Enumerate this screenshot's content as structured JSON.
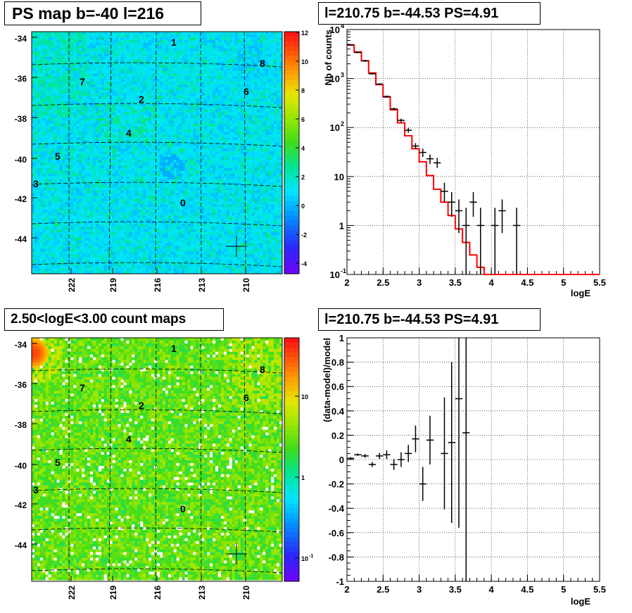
{
  "panels": {
    "map1_title": "PS map b=-40 l=216",
    "map2_title": "2.50<logE<3.00 count maps",
    "spec_title": "l=210.75 b=-44.53 PS=4.91",
    "resid_title": "l=210.75 b=-44.53 PS=4.91"
  },
  "maps": {
    "y_ticks": [
      "-34",
      "-36",
      "-38",
      "-40",
      "-42",
      "-44"
    ],
    "x_ticks": [
      "222",
      "219",
      "216",
      "213",
      "210"
    ],
    "sources": [
      "0",
      "1",
      "2",
      "3",
      "4",
      "5",
      "6",
      "7",
      "8"
    ],
    "map1_scale": [
      "12",
      "10",
      "8",
      "6",
      "4",
      "2",
      "0",
      "-2",
      "-4"
    ],
    "map2_scale": [
      "10",
      "1",
      "10^-1"
    ]
  },
  "chart_data": [
    {
      "type": "line",
      "name_ref": "spectrum",
      "xlabel": "logE",
      "ylabel": "Nb of counts",
      "xlim": [
        2,
        5.5
      ],
      "ylim": [
        0.1,
        10000
      ],
      "yscale": "log",
      "grid": true,
      "x_ticks": [
        "2",
        "2.5",
        "3",
        "3.5",
        "4",
        "4.5",
        "5",
        "5.5"
      ],
      "y_ticks": [
        "10^-1",
        "1",
        "10",
        "10^2",
        "10^3",
        "10^4"
      ],
      "model_color": "#ff0000",
      "model_edges": [
        2.0,
        2.1,
        2.2,
        2.3,
        2.4,
        2.5,
        2.6,
        2.7,
        2.8,
        2.9,
        3.0,
        3.1,
        3.2,
        3.3,
        3.4,
        3.5,
        3.6,
        3.7,
        3.8,
        3.9,
        4.0,
        4.1,
        5.5
      ],
      "model_values": [
        4800,
        3500,
        2300,
        1300,
        750,
        420,
        230,
        125,
        68,
        37,
        20,
        10.5,
        5.5,
        3.0,
        1.6,
        0.85,
        0.45,
        0.25,
        0.14,
        0.1,
        0.1,
        0.1
      ],
      "data_points": [
        {
          "x": 2.05,
          "y": 4900,
          "lo": 4800,
          "hi": 5000
        },
        {
          "x": 2.15,
          "y": 3400,
          "lo": 3300,
          "hi": 3500
        },
        {
          "x": 2.25,
          "y": 2300,
          "lo": 2200,
          "hi": 2400
        },
        {
          "x": 2.35,
          "y": 1250,
          "lo": 1200,
          "hi": 1300
        },
        {
          "x": 2.45,
          "y": 770,
          "lo": 740,
          "hi": 800
        },
        {
          "x": 2.55,
          "y": 430,
          "lo": 410,
          "hi": 450
        },
        {
          "x": 2.65,
          "y": 240,
          "lo": 225,
          "hi": 255
        },
        {
          "x": 2.75,
          "y": 140,
          "lo": 128,
          "hi": 152
        },
        {
          "x": 2.85,
          "y": 88,
          "lo": 78,
          "hi": 98
        },
        {
          "x": 2.95,
          "y": 42,
          "lo": 36,
          "hi": 48
        },
        {
          "x": 3.05,
          "y": 31,
          "lo": 25,
          "hi": 37
        },
        {
          "x": 3.15,
          "y": 23,
          "lo": 18,
          "hi": 28
        },
        {
          "x": 3.25,
          "y": 19,
          "lo": 15,
          "hi": 24
        },
        {
          "x": 3.35,
          "y": 5,
          "lo": 3,
          "hi": 7.5
        },
        {
          "x": 3.45,
          "y": 3,
          "lo": 1.5,
          "hi": 4.8
        },
        {
          "x": 3.55,
          "y": 2,
          "lo": 0.7,
          "hi": 3.4
        },
        {
          "x": 3.65,
          "y": 1,
          "lo": 0.1,
          "hi": 2.3
        },
        {
          "x": 3.75,
          "y": 3,
          "lo": 1.5,
          "hi": 4.8
        },
        {
          "x": 3.85,
          "y": 1,
          "lo": 0.1,
          "hi": 2.3
        },
        {
          "x": 4.05,
          "y": 1,
          "lo": 0.1,
          "hi": 2.3
        },
        {
          "x": 4.15,
          "y": 2,
          "lo": 0.7,
          "hi": 3.4
        },
        {
          "x": 4.35,
          "y": 1,
          "lo": 0.1,
          "hi": 2.3
        }
      ]
    },
    {
      "type": "scatter",
      "name_ref": "residuals",
      "xlabel": "logE",
      "ylabel": "(data-model)/model",
      "xlim": [
        2,
        5.5
      ],
      "ylim": [
        -1,
        1
      ],
      "grid": true,
      "x_ticks": [
        "2",
        "2.5",
        "3",
        "3.5",
        "4",
        "4.5",
        "5",
        "5.5"
      ],
      "y_ticks": [
        "-1",
        "-0.8",
        "-0.6",
        "-0.4",
        "-0.2",
        "0",
        "0.2",
        "0.4",
        "0.6",
        "0.8",
        "1"
      ],
      "data_points": [
        {
          "x": 2.05,
          "y": 0.01,
          "err": 0.01
        },
        {
          "x": 2.15,
          "y": 0.04,
          "err": 0.01
        },
        {
          "x": 2.25,
          "y": 0.03,
          "err": 0.015
        },
        {
          "x": 2.35,
          "y": -0.04,
          "err": 0.02
        },
        {
          "x": 2.45,
          "y": 0.03,
          "err": 0.025
        },
        {
          "x": 2.55,
          "y": 0.04,
          "err": 0.035
        },
        {
          "x": 2.65,
          "y": -0.04,
          "err": 0.045
        },
        {
          "x": 2.75,
          "y": 0.0,
          "err": 0.06
        },
        {
          "x": 2.85,
          "y": 0.05,
          "err": 0.07
        },
        {
          "x": 2.95,
          "y": 0.17,
          "err": 0.11
        },
        {
          "x": 3.05,
          "y": -0.2,
          "err": 0.14
        },
        {
          "x": 3.15,
          "y": 0.16,
          "err": 0.2
        },
        {
          "x": 3.35,
          "y": 0.05,
          "err": 0.46
        },
        {
          "x": 3.45,
          "y": 0.14,
          "err": 0.66
        },
        {
          "x": 3.55,
          "y": 0.5,
          "err": 1.06
        },
        {
          "x": 3.65,
          "y": 0.22,
          "err": 1.3
        }
      ]
    }
  ]
}
